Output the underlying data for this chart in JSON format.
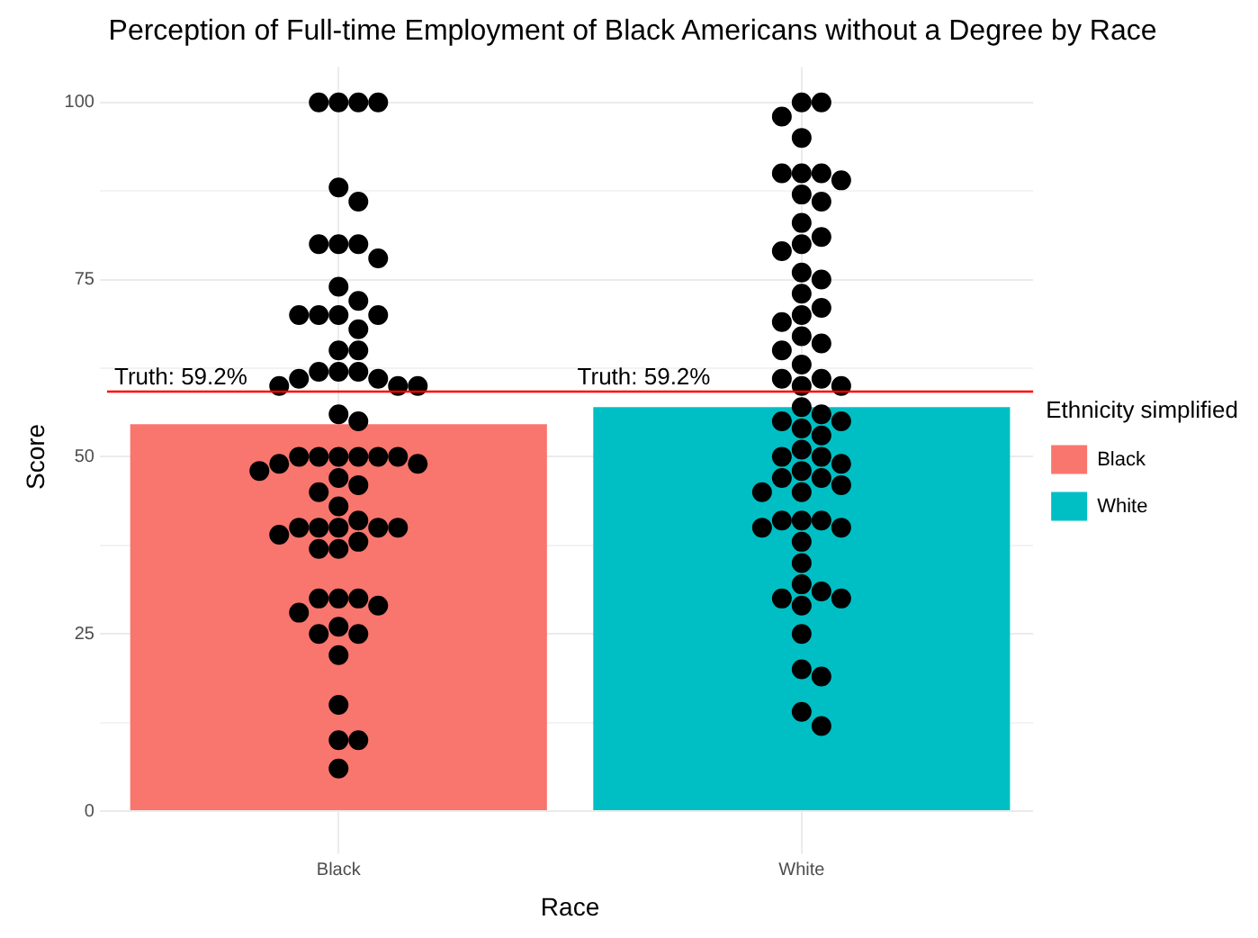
{
  "chart_data": {
    "type": "bar",
    "title": "Perception of Full-time Employment of Black Americans without a Degree by Race",
    "xlabel": "Race",
    "ylabel": "Score",
    "legend_title": "Ethnicity simplified",
    "legend": "right",
    "grid": true,
    "marker": "circle",
    "categories": [
      "Black",
      "White"
    ],
    "series": [
      {
        "name": "Black",
        "color": "#f8766d",
        "values": [
          54.6,
          null
        ]
      },
      {
        "name": "White",
        "color": "#00bfc4",
        "values": [
          null,
          57.0
        ]
      },
      {
        "type": "scatter",
        "color": "#000000",
        "x": [
          "Black",
          "Black",
          "Black",
          "Black",
          "Black",
          "Black",
          "Black",
          "Black",
          "Black",
          "Black",
          "Black",
          "Black",
          "Black",
          "Black",
          "Black",
          "Black",
          "Black",
          "Black",
          "Black",
          "Black",
          "Black",
          "Black",
          "Black",
          "Black",
          "Black",
          "Black",
          "Black",
          "Black",
          "Black",
          "Black",
          "Black",
          "Black",
          "Black",
          "Black",
          "Black",
          "Black",
          "Black",
          "Black",
          "Black",
          "Black",
          "Black",
          "Black",
          "Black",
          "Black",
          "Black",
          "Black",
          "Black",
          "Black",
          "Black",
          "Black",
          "Black",
          "Black",
          "Black",
          "Black",
          "Black",
          "Black",
          "Black",
          "Black",
          "Black",
          "Black",
          "Black",
          "Black",
          "Black",
          "Black",
          "Black"
        ],
        "values": [
          100,
          100,
          100,
          100,
          88,
          86,
          80,
          80,
          80,
          78,
          74,
          72,
          70,
          70,
          70,
          70,
          68,
          65,
          65,
          62,
          62,
          62,
          61,
          61,
          60,
          60,
          60,
          56,
          55,
          50,
          50,
          50,
          50,
          50,
          50,
          49,
          49,
          48,
          47,
          46,
          45,
          43,
          41,
          40,
          40,
          40,
          40,
          40,
          39,
          38,
          37,
          37,
          30,
          30,
          30,
          29,
          28,
          26,
          25,
          25,
          22,
          15,
          10,
          10,
          6
        ]
      },
      {
        "type": "scatter",
        "color": "#000000",
        "x": [
          "White",
          "White",
          "White",
          "White",
          "White",
          "White",
          "White",
          "White",
          "White",
          "White",
          "White",
          "White",
          "White",
          "White",
          "White",
          "White",
          "White",
          "White",
          "White",
          "White",
          "White",
          "White",
          "White",
          "White",
          "White",
          "White",
          "White",
          "White",
          "White",
          "White",
          "White",
          "White",
          "White",
          "White",
          "White",
          "White",
          "White",
          "White",
          "White",
          "White",
          "White",
          "White",
          "White",
          "White",
          "White",
          "White",
          "White",
          "White",
          "White",
          "White",
          "White",
          "White",
          "White",
          "White",
          "White",
          "White",
          "White",
          "White",
          "White",
          "White",
          "White"
        ],
        "values": [
          100,
          100,
          98,
          95,
          90,
          90,
          90,
          89,
          87,
          86,
          83,
          81,
          80,
          79,
          76,
          75,
          73,
          71,
          70,
          69,
          67,
          66,
          65,
          63,
          61,
          61,
          60,
          60,
          57,
          56,
          55,
          55,
          54,
          53,
          51,
          50,
          50,
          49,
          48,
          47,
          47,
          46,
          45,
          45,
          41,
          41,
          41,
          40,
          40,
          38,
          35,
          32,
          31,
          30,
          30,
          29,
          25,
          20,
          19,
          14,
          12
        ]
      }
    ],
    "ylim": [
      -5,
      105
    ],
    "yticks": [
      0,
      {
        "value": 12.5,
        "label": null
      },
      25,
      {
        "value": 37.5,
        "label": null
      },
      50,
      {
        "value": 62.5,
        "label": null
      },
      75,
      {
        "value": 87.5,
        "label": null
      },
      100
    ],
    "ref_lines": [
      {
        "axis": "y",
        "value": 59.2,
        "color": "#ff0000"
      }
    ],
    "annotations": [
      "Truth: 59.2%",
      "Truth: 59.2%"
    ]
  }
}
